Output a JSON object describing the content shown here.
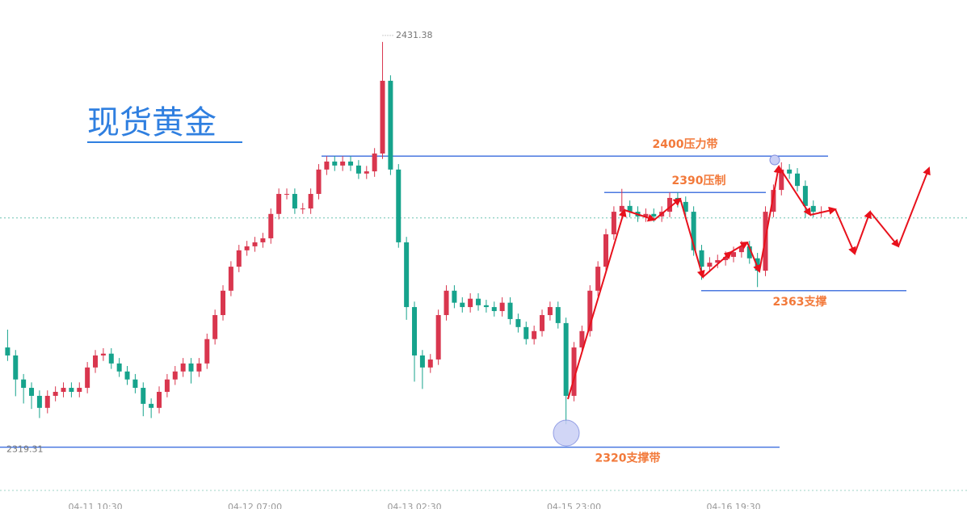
{
  "chart_data": {
    "type": "candlestick",
    "title": "现货黄金",
    "categories": [
      null,
      null,
      null,
      null,
      null,
      null,
      null,
      null,
      null,
      null,
      null,
      "04-11 10:30",
      null,
      null,
      null,
      null,
      null,
      null,
      null,
      null,
      null,
      null,
      null,
      null,
      null,
      null,
      null,
      null,
      null,
      null,
      null,
      "04-12 07:00",
      null,
      null,
      null,
      null,
      null,
      null,
      null,
      null,
      null,
      null,
      null,
      null,
      null,
      null,
      null,
      null,
      null,
      null,
      null,
      "04-13 02:30",
      null,
      null,
      null,
      null,
      null,
      null,
      null,
      null,
      null,
      null,
      null,
      null,
      null,
      null,
      null,
      null,
      null,
      null,
      null,
      "04-15 23:00",
      null,
      null,
      null,
      null,
      null,
      null,
      null,
      null,
      null,
      null,
      null,
      null,
      null,
      null,
      null,
      null,
      null,
      null,
      null,
      "04-16 19:30",
      null,
      null,
      null,
      null,
      null,
      null,
      null,
      null,
      null,
      null,
      null
    ],
    "open": [
      2347.4,
      2345.2,
      2338.6,
      2336.3,
      2334.1,
      2330.8,
      2334.1,
      2335.2,
      2336.3,
      2335.2,
      2336.3,
      2341.9,
      2345.2,
      2345.7,
      2343.0,
      2340.8,
      2338.6,
      2336.3,
      2331.9,
      2330.8,
      2335.2,
      2338.6,
      2340.8,
      2343.0,
      2340.8,
      2343.0,
      2349.7,
      2356.3,
      2363.0,
      2369.6,
      2374.1,
      2375.2,
      2376.3,
      2377.4,
      2384.1,
      2389.6,
      2389.6,
      2385.6,
      2385.6,
      2389.6,
      2396.3,
      2398.5,
      2397.4,
      2398.5,
      2397.4,
      2395.2,
      2395.8,
      2400.7,
      2420.7,
      2396.3,
      2376.3,
      2358.5,
      2345.2,
      2341.9,
      2344.1,
      2356.3,
      2363.0,
      2359.7,
      2358.5,
      2360.8,
      2359.0,
      2358.5,
      2357.4,
      2359.7,
      2355.2,
      2353.0,
      2349.7,
      2351.9,
      2356.3,
      2358.5,
      2354.1,
      2334.1,
      2347.4,
      2351.9,
      2363.0,
      2369.6,
      2378.5,
      2384.7,
      2386.3,
      2384.7,
      2383.4,
      2384.1,
      2383.4,
      2384.7,
      2388.5,
      2387.4,
      2384.7,
      2374.1,
      2369.6,
      2370.7,
      2371.4,
      2372.3,
      2373.6,
      2375.2,
      2371.9,
      2368.5,
      2384.7,
      2390.7,
      2396.3,
      2395.2,
      2391.8,
      2386.3,
      2384.7
    ],
    "high": [
      2352.3,
      2346.7,
      2340.1,
      2337.8,
      2335.6,
      2335.6,
      2336.7,
      2337.8,
      2337.8,
      2337.8,
      2343.4,
      2346.7,
      2347.2,
      2347.2,
      2344.5,
      2342.3,
      2340.1,
      2337.8,
      2333.4,
      2336.7,
      2340.1,
      2342.3,
      2344.5,
      2344.5,
      2344.5,
      2351.2,
      2357.8,
      2364.5,
      2371.1,
      2375.6,
      2376.7,
      2377.8,
      2378.9,
      2385.6,
      2391.1,
      2391.1,
      2391.1,
      2387.1,
      2391.1,
      2397.8,
      2400.0,
      2400.0,
      2400.0,
      2400.0,
      2398.9,
      2397.3,
      2402.2,
      2431.38,
      2422.2,
      2397.8,
      2377.8,
      2360.0,
      2346.7,
      2345.6,
      2357.8,
      2364.5,
      2364.5,
      2361.2,
      2362.3,
      2362.3,
      2360.5,
      2360.0,
      2361.2,
      2361.2,
      2356.7,
      2354.5,
      2353.4,
      2357.8,
      2360.0,
      2360.0,
      2355.6,
      2348.9,
      2353.4,
      2364.5,
      2371.1,
      2380.0,
      2386.2,
      2391.0,
      2387.8,
      2386.2,
      2385.6,
      2385.6,
      2386.2,
      2390.0,
      2390.0,
      2388.9,
      2386.2,
      2375.6,
      2372.2,
      2372.9,
      2373.8,
      2375.1,
      2376.7,
      2376.7,
      2373.4,
      2386.2,
      2392.2,
      2398.3,
      2397.8,
      2396.7,
      2393.3,
      2387.8,
      2386.2
    ],
    "low": [
      2343.7,
      2334.0,
      2332.0,
      2330.5,
      2328.0,
      2329.3,
      2332.6,
      2333.7,
      2333.7,
      2333.7,
      2334.8,
      2340.4,
      2343.7,
      2341.5,
      2339.3,
      2337.1,
      2334.8,
      2328.5,
      2328.0,
      2329.3,
      2333.7,
      2337.1,
      2339.3,
      2337.5,
      2339.3,
      2341.5,
      2348.2,
      2354.8,
      2361.5,
      2368.1,
      2372.6,
      2373.7,
      2374.8,
      2375.9,
      2382.6,
      2388.1,
      2384.1,
      2384.1,
      2384.1,
      2388.1,
      2394.8,
      2395.9,
      2395.9,
      2395.9,
      2393.7,
      2393.7,
      2394.3,
      2399.2,
      2394.8,
      2374.8,
      2355.0,
      2338.0,
      2336.0,
      2340.4,
      2342.6,
      2354.8,
      2358.2,
      2357.0,
      2357.0,
      2357.5,
      2357.0,
      2355.9,
      2355.9,
      2353.7,
      2351.5,
      2348.2,
      2348.2,
      2350.4,
      2354.8,
      2352.6,
      2326.3,
      2332.6,
      2345.9,
      2350.4,
      2361.5,
      2368.1,
      2377.0,
      2383.2,
      2383.2,
      2381.9,
      2381.9,
      2381.9,
      2381.9,
      2383.2,
      2385.9,
      2383.2,
      2372.6,
      2366.0,
      2368.1,
      2369.2,
      2369.9,
      2370.8,
      2372.1,
      2370.4,
      2364.0,
      2367.0,
      2383.2,
      2389.2,
      2393.7,
      2390.3,
      2383.0,
      2383.2,
      2383.2
    ],
    "close": [
      2345.2,
      2338.6,
      2336.3,
      2334.1,
      2330.8,
      2334.1,
      2335.2,
      2336.3,
      2335.2,
      2336.3,
      2341.9,
      2345.2,
      2345.7,
      2343.0,
      2340.8,
      2338.6,
      2336.3,
      2331.9,
      2330.8,
      2335.2,
      2338.6,
      2340.8,
      2343.0,
      2340.8,
      2343.0,
      2349.7,
      2356.3,
      2363.0,
      2369.6,
      2374.1,
      2375.2,
      2376.3,
      2377.4,
      2384.1,
      2389.6,
      2389.6,
      2385.6,
      2385.6,
      2389.6,
      2396.3,
      2398.5,
      2397.4,
      2398.5,
      2397.4,
      2395.2,
      2395.8,
      2400.7,
      2420.7,
      2396.3,
      2376.3,
      2358.5,
      2345.2,
      2341.9,
      2344.1,
      2356.3,
      2363.0,
      2359.7,
      2358.5,
      2360.8,
      2359.0,
      2358.5,
      2357.4,
      2359.7,
      2355.2,
      2353.0,
      2349.7,
      2351.9,
      2356.3,
      2358.5,
      2354.1,
      2334.1,
      2347.4,
      2351.9,
      2363.0,
      2369.6,
      2378.5,
      2384.7,
      2386.3,
      2384.7,
      2383.4,
      2384.1,
      2383.4,
      2384.7,
      2388.5,
      2387.4,
      2384.7,
      2374.1,
      2369.6,
      2370.7,
      2371.4,
      2372.3,
      2373.6,
      2375.2,
      2371.9,
      2368.5,
      2384.7,
      2390.7,
      2396.3,
      2395.2,
      2391.8,
      2386.3,
      2384.7,
      2384.7
    ],
    "up_color": "#d9364e",
    "down_color": "#16a38c",
    "ylim": [
      2303.0,
      2442.9
    ],
    "high_marker": 2431.38,
    "low_marker": 2319.31,
    "last_price": 2383.0,
    "levels": [
      {
        "value": 2400,
        "label": "2400压力带"
      },
      {
        "value": 2390,
        "label": "2390压制"
      },
      {
        "value": 2363,
        "label": "2363支撑"
      },
      {
        "value": 2320,
        "label": "2320支撑带"
      }
    ],
    "level_color": "#4a78e0",
    "label_color": "#f2793a"
  }
}
